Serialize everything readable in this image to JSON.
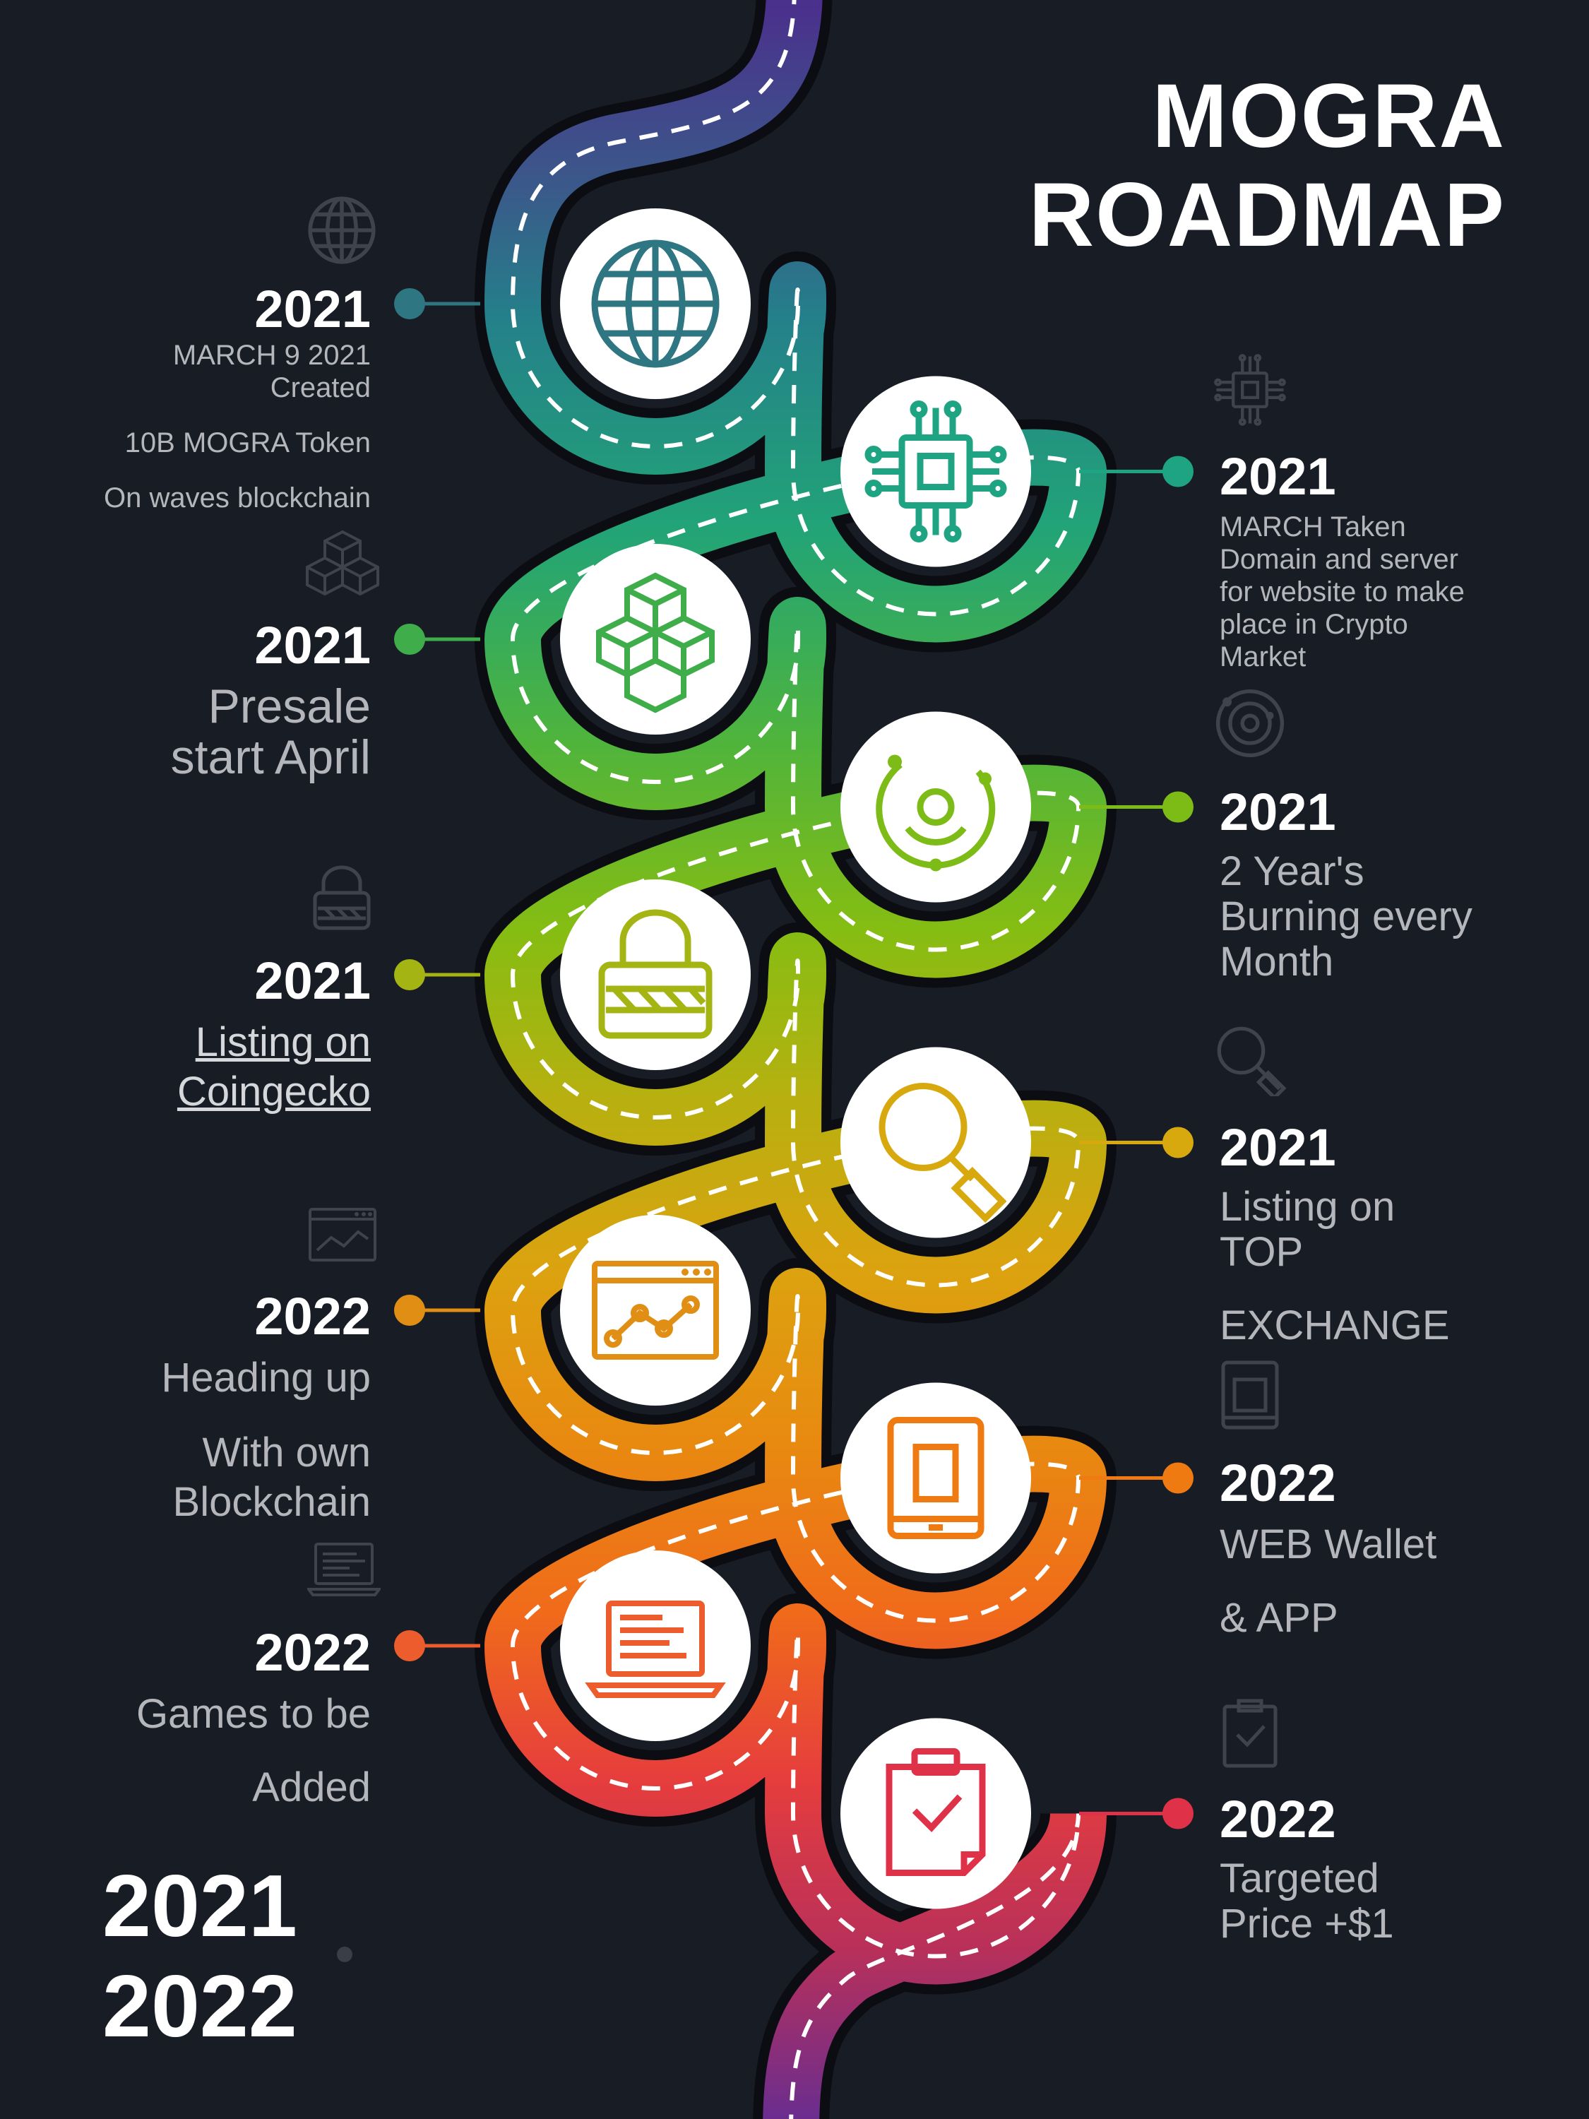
{
  "title": {
    "line1": "MOGRA",
    "line2": "ROADMAP"
  },
  "years_range": {
    "start": "2021",
    "end": "2022"
  },
  "milestones": [
    {
      "year": "2021",
      "side": "left",
      "icon": "globe-icon",
      "color": "#2e7682",
      "lines": [
        "MARCH 9 2021",
        "Created",
        "10B MOGRA Token",
        "On waves blockchain"
      ]
    },
    {
      "year": "2021",
      "side": "right",
      "icon": "chip-icon",
      "color": "#1ea383",
      "lines": [
        "MARCH Taken",
        "Domain and server",
        "for website to make",
        "place  in Crypto",
        "Market"
      ]
    },
    {
      "year": "2021",
      "side": "left",
      "icon": "cubes-icon",
      "color": "#3fae4a",
      "lines": [
        "Presale",
        "start April"
      ]
    },
    {
      "year": "2021",
      "side": "right",
      "icon": "orbit-icon",
      "color": "#7dbb16",
      "lines": [
        "2 Year's",
        "Burning every",
        "Month"
      ]
    },
    {
      "year": "2021",
      "side": "left",
      "icon": "lock-icon",
      "color": "#a3b413",
      "lines": [
        "Listing on",
        "Coingecko"
      ]
    },
    {
      "year": "2021",
      "side": "right",
      "icon": "magnifier-icon",
      "color": "#d8a90f",
      "lines": [
        "Listing  on",
        "TOP",
        "EXCHANGE"
      ]
    },
    {
      "year": "2022",
      "side": "left",
      "icon": "line-chart-window-icon",
      "color": "#e08f14",
      "lines": [
        "Heading up",
        "With own",
        "Blockchain"
      ]
    },
    {
      "year": "2022",
      "side": "right",
      "icon": "tablet-icon",
      "color": "#ef7a12",
      "lines": [
        "WEB Wallet",
        "& APP"
      ]
    },
    {
      "year": "2022",
      "side": "left",
      "icon": "laptop-icon",
      "color": "#ed5c2c",
      "lines": [
        "Games to be",
        "Added"
      ]
    },
    {
      "year": "2022",
      "side": "right",
      "icon": "clipboard-check-icon",
      "color": "#df3248",
      "lines": [
        "Targeted",
        "Price +$1"
      ]
    }
  ]
}
